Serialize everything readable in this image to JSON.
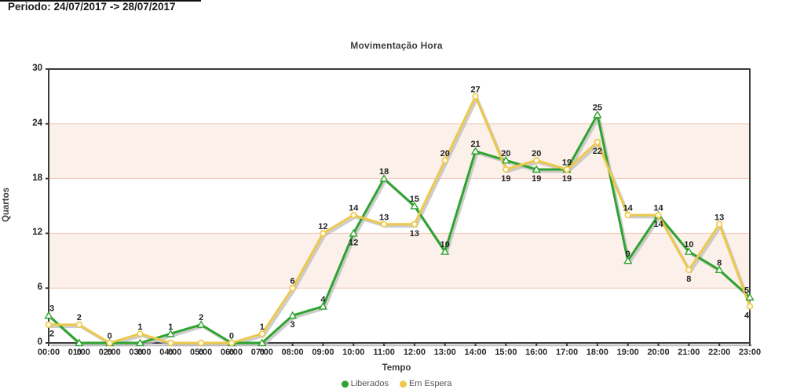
{
  "header": {
    "period": "Periodo: 24/07/2017 -> 28/07/2017"
  },
  "chart_data": {
    "type": "line",
    "title": "Movimentação Hora",
    "xlabel": "Tempo",
    "ylabel": "Quartos",
    "categories": [
      "00:00",
      "01:00",
      "02:00",
      "03:00",
      "04:00",
      "05:00",
      "06:00",
      "07:00",
      "08:00",
      "09:00",
      "10:00",
      "11:00",
      "12:00",
      "13:00",
      "14:00",
      "15:00",
      "16:00",
      "17:00",
      "18:00",
      "19:00",
      "20:00",
      "21:00",
      "22:00",
      "23:00"
    ],
    "y_ticks": [
      0,
      6,
      12,
      18,
      24,
      30
    ],
    "ylim": [
      0,
      30
    ],
    "grid": "band-stripes",
    "bands": [
      {
        "from": 6,
        "to": 12
      },
      {
        "from": 18,
        "to": 24
      }
    ],
    "band_fill": "#FCF1EA",
    "band_edge": "#F1C9B9",
    "legend_position": "bottom-center",
    "series": [
      {
        "name": "Liberados",
        "color": "#2FA32F",
        "marker": "triangle",
        "values": [
          3,
          0,
          0,
          0,
          1,
          2,
          0,
          0,
          3,
          4,
          12,
          18,
          15,
          10,
          21,
          20,
          19,
          19,
          25,
          9,
          14,
          10,
          8,
          5
        ]
      },
      {
        "name": "Em Espera",
        "color": "#EDC84A",
        "marker": "circle",
        "values": [
          2,
          2,
          0,
          1,
          0,
          0,
          0,
          1,
          6,
          12,
          14,
          13,
          13,
          20,
          27,
          19,
          20,
          19,
          22,
          14,
          14,
          8,
          13,
          4
        ]
      }
    ]
  }
}
